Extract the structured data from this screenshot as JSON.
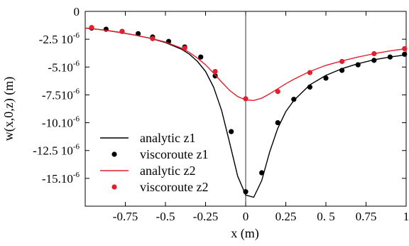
{
  "chart_data": {
    "type": "line",
    "title": "",
    "xlabel": "x (m)",
    "ylabel": "w(x,0,z) (m)",
    "xlim": [
      -1,
      1
    ],
    "ylim": [
      -1.75e-05,
      0
    ],
    "grid": false,
    "legend_position": "bottom-left",
    "x_ticks": [
      {
        "value": -0.75,
        "label": "-0.75"
      },
      {
        "value": -0.5,
        "label": "-0.5"
      },
      {
        "value": -0.25,
        "label": "-0.25"
      },
      {
        "value": 0,
        "label": "0"
      },
      {
        "value": 0.25,
        "label": "0.25"
      },
      {
        "value": 0.5,
        "label": "0. 5"
      },
      {
        "value": 0.75,
        "label": "0.75"
      },
      {
        "value": 1,
        "label": "1"
      }
    ],
    "y_ticks": [
      {
        "value": 0,
        "label": "0",
        "exp": ""
      },
      {
        "value": -2.5e-06,
        "label": "-2.5 10",
        "exp": "-6"
      },
      {
        "value": -5e-06,
        "label": "-5.10",
        "exp": "-6"
      },
      {
        "value": -7.5e-06,
        "label": "-7.510",
        "exp": "-6"
      },
      {
        "value": -1e-05,
        "label": "-10.10",
        "exp": "-6"
      },
      {
        "value": -1.25e-05,
        "label": "-12.5 10",
        "exp": "-6"
      },
      {
        "value": -1.5e-05,
        "label": "-15.10",
        "exp": "-6"
      }
    ],
    "series": [
      {
        "name": "analytic z1",
        "kind": "line",
        "color": "#000000",
        "x": [
          -1.0,
          -0.9,
          -0.8,
          -0.7,
          -0.6,
          -0.5,
          -0.4,
          -0.35,
          -0.3,
          -0.25,
          -0.2,
          -0.15,
          -0.1,
          -0.05,
          0.0,
          0.05,
          0.1,
          0.15,
          0.2,
          0.25,
          0.3,
          0.4,
          0.5,
          0.6,
          0.7,
          0.8,
          0.9,
          1.0
        ],
        "y": [
          -1.5e-06,
          -1.65e-06,
          -1.85e-06,
          -2.1e-06,
          -2.4e-06,
          -2.8e-06,
          -3.4e-06,
          -3.85e-06,
          -4.5e-06,
          -5.4e-06,
          -6.8e-06,
          -8.9e-06,
          -1.18e-05,
          -1.48e-05,
          -1.65e-05,
          -1.67e-05,
          -1.52e-05,
          -1.26e-05,
          -1.05e-05,
          -9e-06,
          -8e-06,
          -6.6e-06,
          -5.75e-06,
          -5.15e-06,
          -4.7e-06,
          -4.35e-06,
          -4.1e-06,
          -3.9e-06
        ]
      },
      {
        "name": "viscoroute z1",
        "kind": "scatter",
        "color": "#000000",
        "x": [
          -0.96,
          -0.87,
          -0.77,
          -0.67,
          -0.58,
          -0.48,
          -0.38,
          -0.28,
          -0.19,
          -0.09,
          0.0,
          0.1,
          0.2,
          0.3,
          0.4,
          0.5,
          0.6,
          0.7,
          0.8,
          0.9,
          0.99
        ],
        "y": [
          -1.5e-06,
          -1.6e-06,
          -1.8e-06,
          -2e-06,
          -2.3e-06,
          -2.7e-06,
          -3.2e-06,
          -4.1e-06,
          -5.8e-06,
          -1.08e-05,
          -1.62e-05,
          -1.45e-05,
          -1e-05,
          -7.9e-06,
          -6.8e-06,
          -6e-06,
          -5.3e-06,
          -4.8e-06,
          -4.4e-06,
          -4.1e-06,
          -3.85e-06
        ]
      },
      {
        "name": "analytic z2",
        "kind": "line",
        "color": "#e0202f",
        "x": [
          -1.0,
          -0.9,
          -0.8,
          -0.7,
          -0.6,
          -0.5,
          -0.4,
          -0.35,
          -0.3,
          -0.25,
          -0.2,
          -0.15,
          -0.1,
          -0.05,
          0.0,
          0.05,
          0.1,
          0.15,
          0.2,
          0.25,
          0.3,
          0.4,
          0.5,
          0.6,
          0.7,
          0.8,
          0.9,
          1.0
        ],
        "y": [
          -1.5e-06,
          -1.65e-06,
          -1.85e-06,
          -2.1e-06,
          -2.4e-06,
          -2.75e-06,
          -3.3e-06,
          -3.7e-06,
          -4.2e-06,
          -4.8e-06,
          -5.55e-06,
          -6.35e-06,
          -7.1e-06,
          -7.65e-06,
          -7.95e-06,
          -8e-06,
          -7.8e-06,
          -7.4e-06,
          -6.95e-06,
          -6.5e-06,
          -6.1e-06,
          -5.4e-06,
          -4.85e-06,
          -4.45e-06,
          -4.1e-06,
          -3.8e-06,
          -3.55e-06,
          -3.35e-06
        ]
      },
      {
        "name": "viscoroute z2",
        "kind": "scatter",
        "color": "#e0202f",
        "x": [
          -0.96,
          -0.77,
          -0.58,
          -0.38,
          -0.19,
          0.0,
          0.2,
          0.4,
          0.6,
          0.8,
          0.99
        ],
        "y": [
          -1.45e-06,
          -1.8e-06,
          -2.45e-06,
          -3.3e-06,
          -5.4e-06,
          -7.85e-06,
          -7.2e-06,
          -5.5e-06,
          -4.5e-06,
          -3.8e-06,
          -3.35e-06
        ]
      }
    ]
  }
}
